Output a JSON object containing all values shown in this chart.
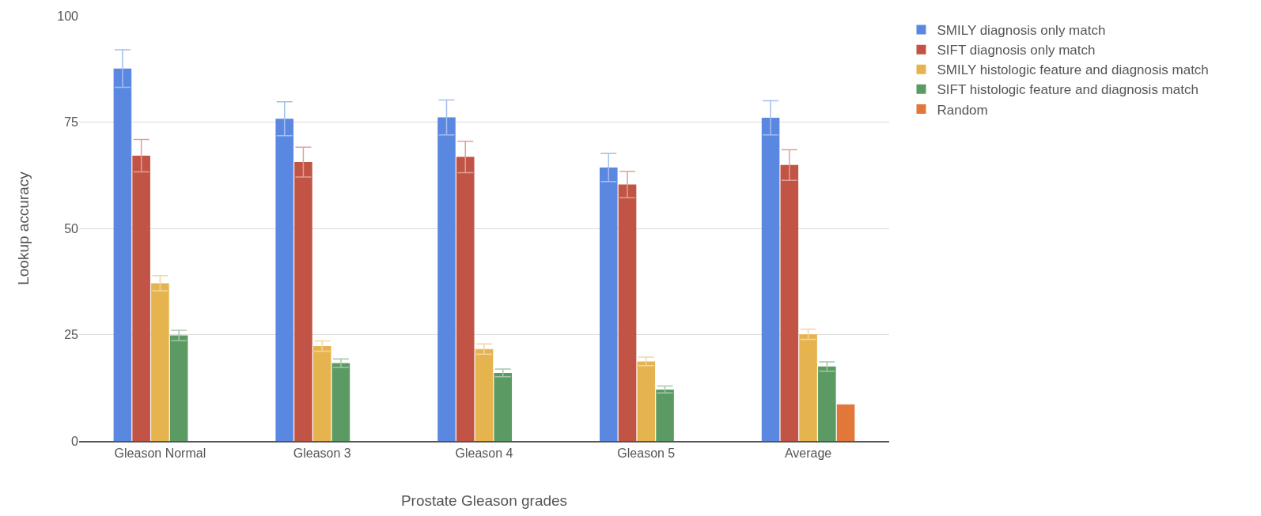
{
  "chart_data": {
    "type": "bar",
    "xlabel": "Prostate Gleason grades",
    "ylabel": "Lookup accuracy",
    "categories": [
      "Gleason Normal",
      "Gleason 3",
      "Gleason 4",
      "Gleason 5",
      "Average"
    ],
    "series": [
      {
        "name": "SMILY diagnosis only match",
        "color": "#5a88e0",
        "values": [
          87.6,
          75.8,
          76.1,
          64.3,
          76.0
        ],
        "errors": [
          4.4,
          4.0,
          4.1,
          3.3,
          4.0
        ]
      },
      {
        "name": "SIFT diagnosis only match",
        "color": "#c25445",
        "values": [
          67.1,
          65.6,
          66.8,
          60.3,
          64.9
        ],
        "errors": [
          3.8,
          3.5,
          3.7,
          3.1,
          3.6
        ]
      },
      {
        "name": "SMILY histologic feature and diagnosis match",
        "color": "#e6b44e",
        "values": [
          37.1,
          22.3,
          21.6,
          18.7,
          25.1
        ],
        "errors": [
          1.8,
          1.2,
          1.2,
          1.0,
          1.2
        ]
      },
      {
        "name": "SIFT histologic feature and diagnosis match",
        "color": "#5b9a62",
        "values": [
          24.8,
          18.3,
          16.0,
          12.1,
          17.5
        ],
        "errors": [
          1.2,
          1.0,
          0.9,
          0.8,
          1.1
        ]
      },
      {
        "name": "Random",
        "color": "#e2773a",
        "values": [
          null,
          null,
          null,
          null,
          8.6
        ]
      }
    ],
    "ylim": [
      0,
      100
    ],
    "yticks": [
      0,
      25,
      50,
      75,
      100
    ],
    "grid": "y",
    "legend": "top right"
  }
}
